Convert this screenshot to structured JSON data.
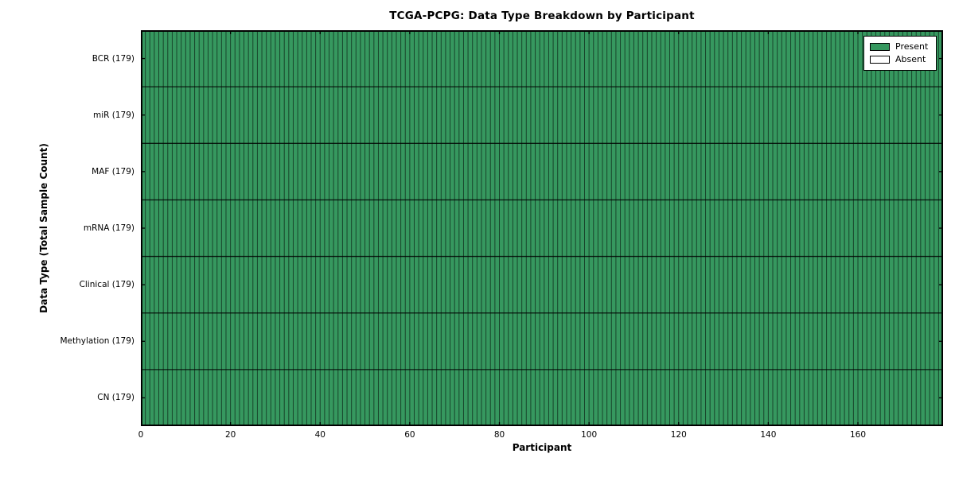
{
  "figure": {
    "title": "TCGA-PCPG: Data Type Breakdown by Participant",
    "xlabel": "Participant",
    "ylabel": "Data Type (Total Sample Count)"
  },
  "legend": {
    "position": "upper right",
    "items": [
      {
        "label": "Present",
        "color": "#36985f"
      },
      {
        "label": "Absent",
        "color": "#ffffff"
      }
    ]
  },
  "chart_data": {
    "type": "heatmap",
    "title": "TCGA-PCPG: Data Type Breakdown by Participant",
    "xlabel": "Participant",
    "ylabel": "Data Type (Total Sample Count)",
    "n_participants": 179,
    "xlim": [
      0,
      179
    ],
    "x_ticks": [
      0,
      20,
      40,
      60,
      80,
      100,
      120,
      140,
      160
    ],
    "rows": [
      {
        "label": "BCR (179)",
        "data_type": "BCR",
        "total_sample_count": 179,
        "present_count": 179
      },
      {
        "label": "miR (179)",
        "data_type": "miR",
        "total_sample_count": 179,
        "present_count": 179
      },
      {
        "label": "MAF (179)",
        "data_type": "MAF",
        "total_sample_count": 179,
        "present_count": 179
      },
      {
        "label": "mRNA (179)",
        "data_type": "mRNA",
        "total_sample_count": 179,
        "present_count": 179
      },
      {
        "label": "Clinical (179)",
        "data_type": "Clinical",
        "total_sample_count": 179,
        "present_count": 179
      },
      {
        "label": "Methylation (179)",
        "data_type": "Methylation",
        "total_sample_count": 179,
        "present_count": 179
      },
      {
        "label": "CN (179)",
        "data_type": "CN",
        "total_sample_count": 179,
        "present_count": 179
      }
    ],
    "colors": {
      "present": "#36985f",
      "absent": "#ffffff"
    },
    "legend_entries": [
      "Present",
      "Absent"
    ],
    "grid": false,
    "tick_direction": "in"
  }
}
